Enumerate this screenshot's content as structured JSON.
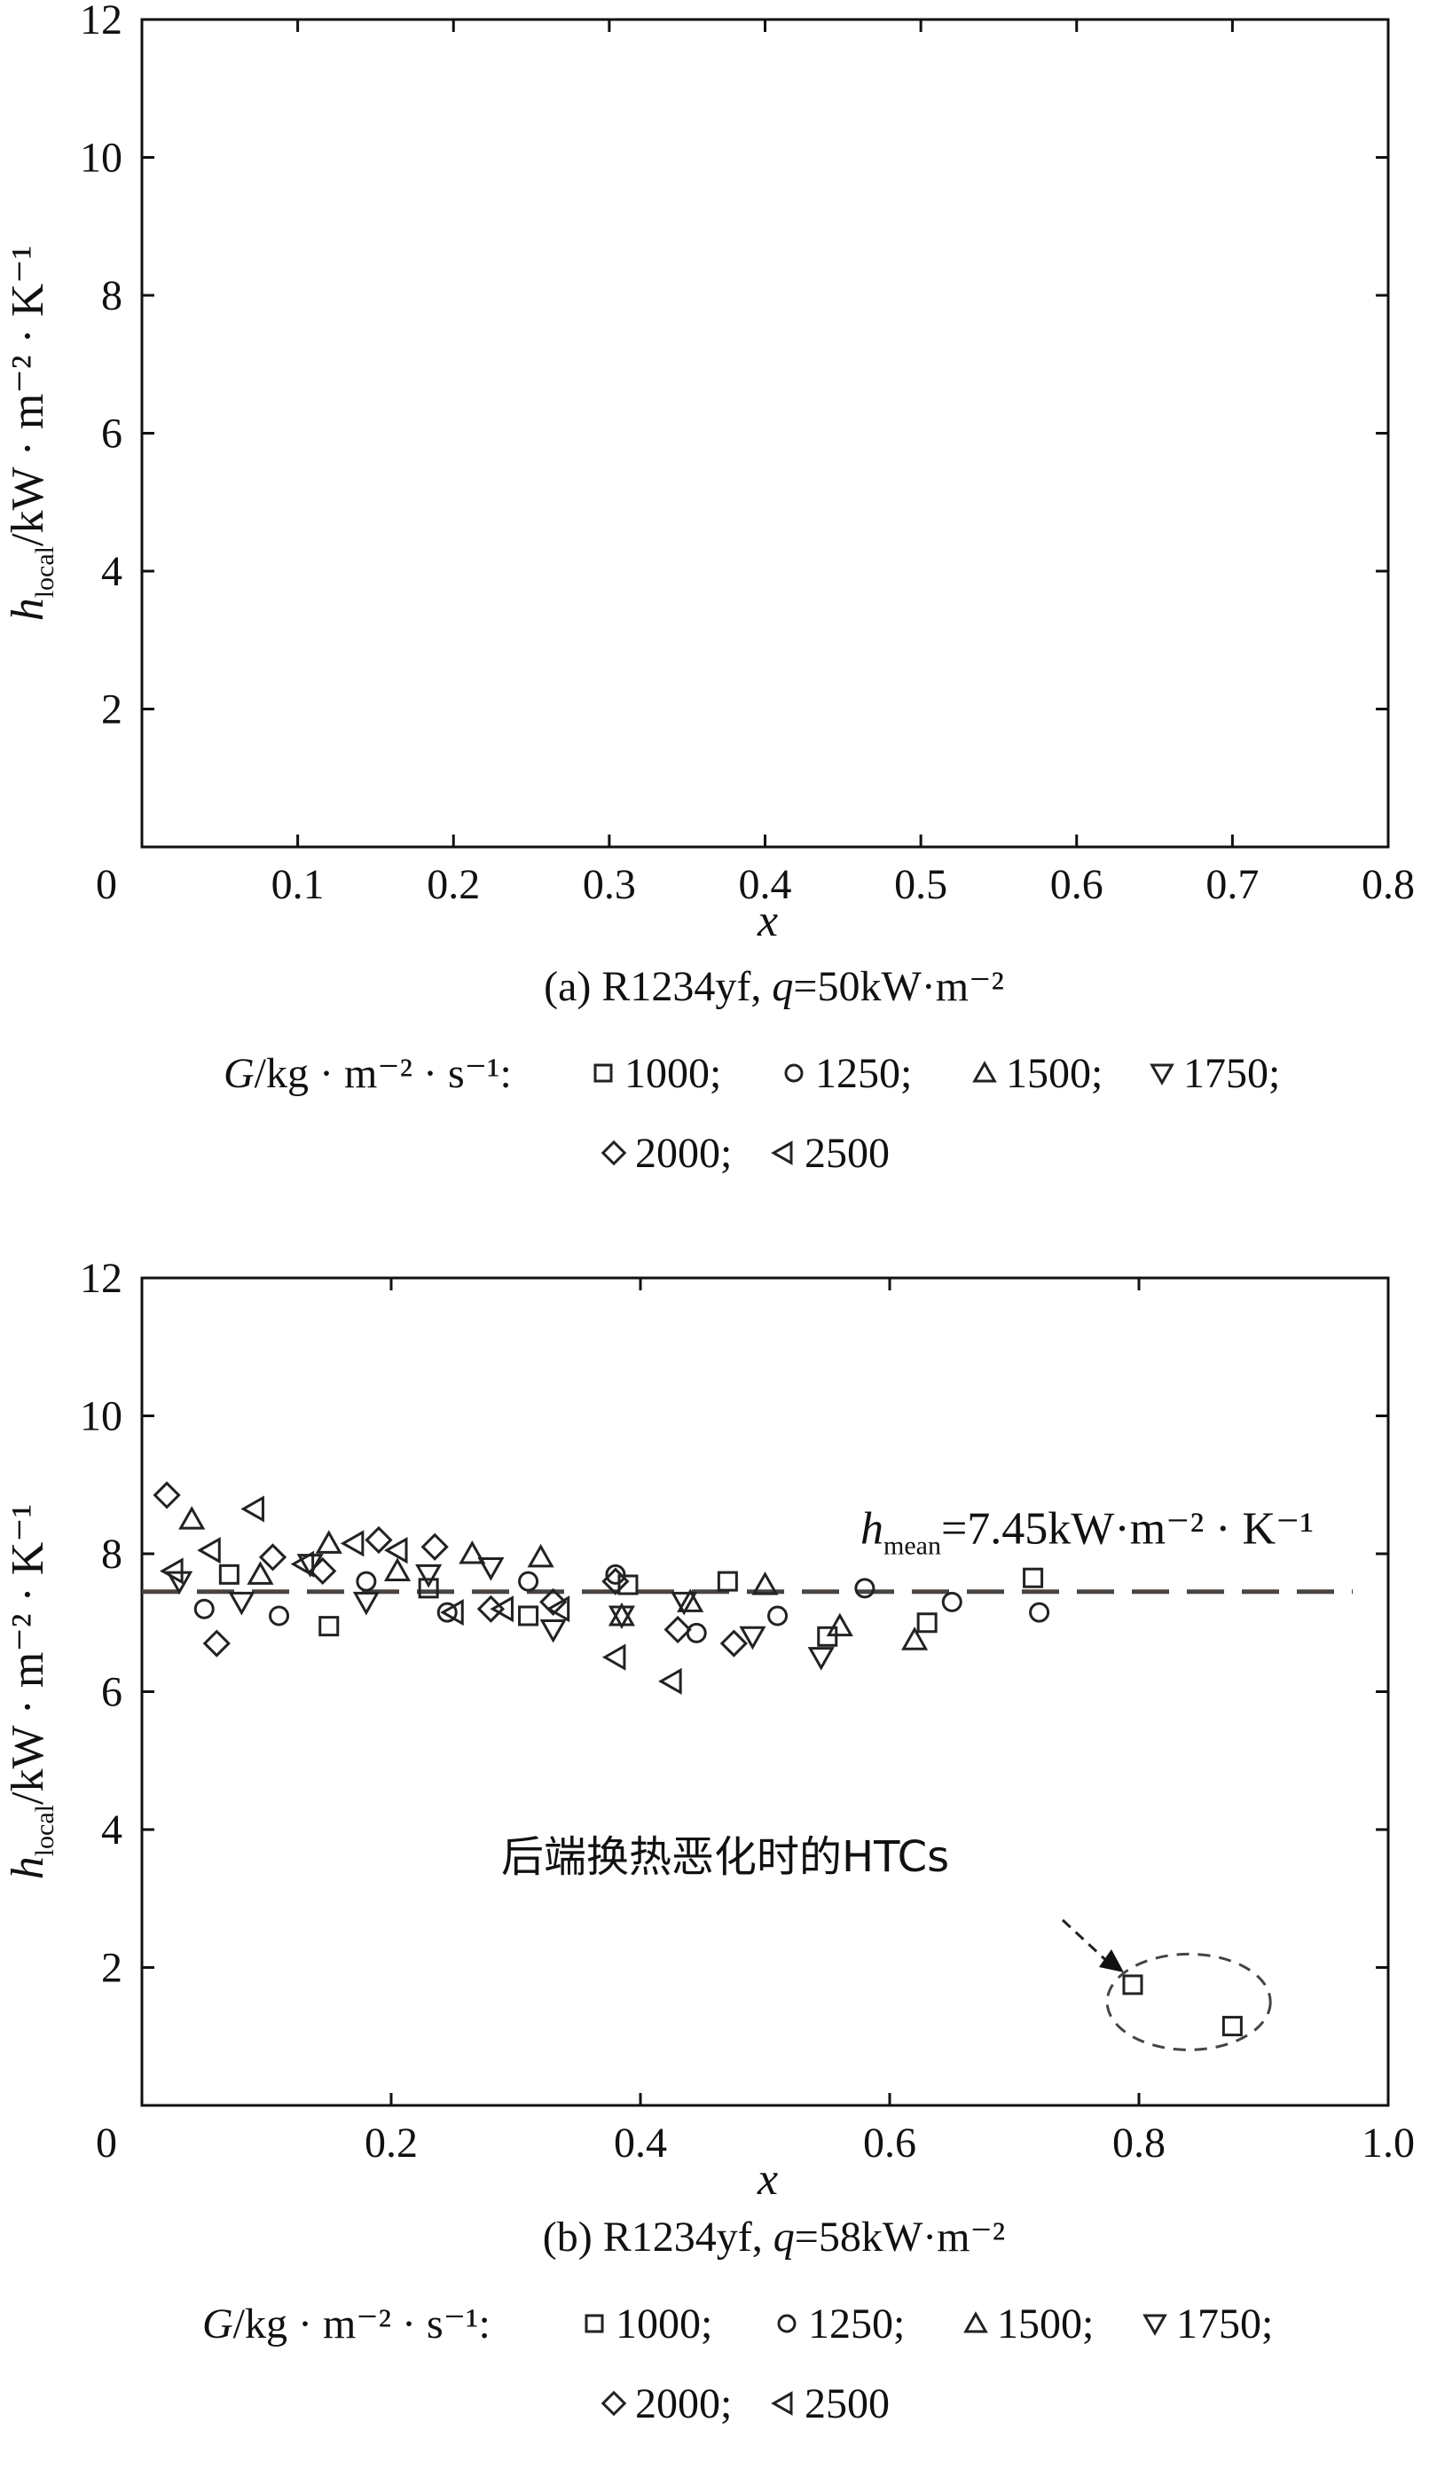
{
  "chart_data": [
    {
      "type": "scatter",
      "caption": "(a) R1234yf, q=50kW·m⁻²",
      "xlabel": "x",
      "ylabel": "h_local/kW·m⁻²·K⁻¹",
      "ylabel_main": "h",
      "ylabel_sub": "local",
      "ylabel_tail": "/kW · m⁻² · K⁻¹",
      "xlim": [
        0,
        0.8
      ],
      "ylim": [
        0,
        12
      ],
      "xticks": [
        0,
        0.1,
        0.2,
        0.3,
        0.4,
        0.5,
        0.6,
        0.7,
        0.8
      ],
      "xtick_labels": [
        "0",
        "0.1",
        "0.2",
        "0.3",
        "0.4",
        "0.5",
        "0.6",
        "0.7",
        "0.8"
      ],
      "yticks": [
        2,
        4,
        6,
        8,
        10,
        12
      ],
      "ytick_labels": [
        "2",
        "4",
        "6",
        "8",
        "10",
        "12"
      ],
      "legend_prefix": "G/kg · m⁻² · s⁻¹:",
      "series": [
        {
          "name": "1000",
          "marker": "square",
          "points": []
        },
        {
          "name": "1250",
          "marker": "circle",
          "points": []
        },
        {
          "name": "1500",
          "marker": "triangle-up",
          "points": []
        },
        {
          "name": "1750",
          "marker": "triangle-down",
          "points": []
        },
        {
          "name": "2000",
          "marker": "diamond",
          "points": []
        },
        {
          "name": "2500",
          "marker": "triangle-left",
          "points": []
        }
      ]
    },
    {
      "type": "scatter",
      "caption": "(b) R1234yf, q=58kW·m⁻²",
      "xlabel": "x",
      "ylabel": "h_local/kW·m⁻²·K⁻¹",
      "ylabel_main": "h",
      "ylabel_sub": "local",
      "ylabel_tail": "/kW · m⁻² · K⁻¹",
      "xlim": [
        0,
        1.0
      ],
      "ylim": [
        0,
        12
      ],
      "xticks": [
        0,
        0.2,
        0.4,
        0.6,
        0.8,
        1.0
      ],
      "xtick_labels": [
        "0",
        "0.2",
        "0.4",
        "0.6",
        "0.8",
        "1.0"
      ],
      "yticks": [
        2,
        4,
        6,
        8,
        10,
        12
      ],
      "ytick_labels": [
        "2",
        "4",
        "6",
        "8",
        "10",
        "12"
      ],
      "mean_line": {
        "y": 7.45,
        "label_main": "h",
        "label_sub": "mean",
        "label_tail": "=7.45kW·m⁻² · K⁻¹"
      },
      "annotation": {
        "text": "后端换热恶化时的HTCs",
        "target": [
          0.795,
          1.75
        ]
      },
      "legend_prefix": "G/kg · m⁻² · s⁻¹:",
      "series": [
        {
          "name": "1000",
          "marker": "square",
          "points": [
            [
              0.07,
              7.7
            ],
            [
              0.15,
              6.95
            ],
            [
              0.23,
              7.5
            ],
            [
              0.31,
              7.1
            ],
            [
              0.39,
              7.55
            ],
            [
              0.47,
              7.6
            ],
            [
              0.55,
              6.8
            ],
            [
              0.63,
              7.0
            ],
            [
              0.715,
              7.65
            ],
            [
              0.795,
              1.75
            ],
            [
              0.875,
              1.15
            ]
          ]
        },
        {
          "name": "1250",
          "marker": "circle",
          "points": [
            [
              0.05,
              7.2
            ],
            [
              0.11,
              7.1
            ],
            [
              0.18,
              7.6
            ],
            [
              0.245,
              7.15
            ],
            [
              0.31,
              7.6
            ],
            [
              0.38,
              7.7
            ],
            [
              0.445,
              6.85
            ],
            [
              0.51,
              7.1
            ],
            [
              0.58,
              7.5
            ],
            [
              0.65,
              7.3
            ],
            [
              0.72,
              7.15
            ]
          ]
        },
        {
          "name": "1500",
          "marker": "triangle-up",
          "points": [
            [
              0.04,
              8.5
            ],
            [
              0.095,
              7.7
            ],
            [
              0.15,
              8.15
            ],
            [
              0.205,
              7.75
            ],
            [
              0.265,
              8.0
            ],
            [
              0.32,
              7.95
            ],
            [
              0.385,
              7.1
            ],
            [
              0.44,
              7.3
            ],
            [
              0.5,
              7.55
            ],
            [
              0.56,
              6.95
            ],
            [
              0.62,
              6.75
            ]
          ]
        },
        {
          "name": "1750",
          "marker": "triangle-down",
          "points": [
            [
              0.03,
              7.6
            ],
            [
              0.08,
              7.3
            ],
            [
              0.135,
              7.85
            ],
            [
              0.18,
              7.3
            ],
            [
              0.23,
              7.7
            ],
            [
              0.28,
              7.8
            ],
            [
              0.33,
              6.9
            ],
            [
              0.385,
              7.1
            ],
            [
              0.435,
              7.3
            ],
            [
              0.49,
              6.8
            ],
            [
              0.545,
              6.5
            ]
          ]
        },
        {
          "name": "2000",
          "marker": "diamond",
          "points": [
            [
              0.02,
              8.85
            ],
            [
              0.06,
              6.7
            ],
            [
              0.105,
              7.95
            ],
            [
              0.145,
              7.75
            ],
            [
              0.19,
              8.2
            ],
            [
              0.235,
              8.1
            ],
            [
              0.28,
              7.2
            ],
            [
              0.33,
              7.3
            ],
            [
              0.38,
              7.6
            ],
            [
              0.43,
              6.9
            ],
            [
              0.475,
              6.7
            ]
          ]
        },
        {
          "name": "2500",
          "marker": "triangle-left",
          "points": [
            [
              0.025,
              7.75
            ],
            [
              0.055,
              8.05
            ],
            [
              0.09,
              8.65
            ],
            [
              0.13,
              7.85
            ],
            [
              0.17,
              8.15
            ],
            [
              0.205,
              8.05
            ],
            [
              0.25,
              7.15
            ],
            [
              0.29,
              7.2
            ],
            [
              0.335,
              7.2
            ],
            [
              0.38,
              6.5
            ],
            [
              0.425,
              6.15
            ]
          ]
        }
      ]
    }
  ]
}
